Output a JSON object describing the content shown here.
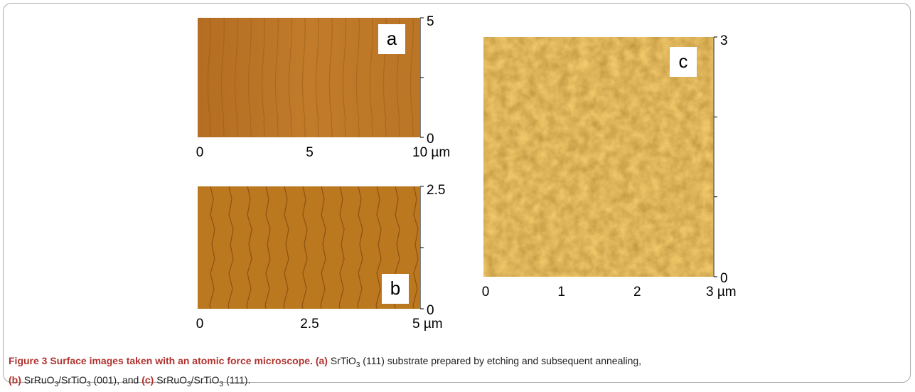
{
  "figure": {
    "panels": [
      {
        "label": "a",
        "x_ticks": [
          "0",
          "5",
          "10 µm"
        ],
        "y_ticks": [
          "0",
          "5"
        ]
      },
      {
        "label": "b",
        "x_ticks": [
          "0",
          "2.5",
          "5 µm"
        ],
        "y_ticks": [
          "0",
          "2.5"
        ]
      },
      {
        "label": "c",
        "x_ticks": [
          "0",
          "1",
          "2",
          "3 µm"
        ],
        "y_ticks": [
          "0",
          "3"
        ]
      }
    ],
    "caption": {
      "parts": [
        "Figure 3 Surface images taken with an atomic force microscope.",
        "(a)",
        " SrTiO",
        "3",
        " (111) substrate prepared by etching and subsequent annealing,",
        "(b)",
        " SrRuO",
        "3",
        "/SrTiO",
        "3",
        " (001), and ",
        "(c)",
        " SrRuO",
        "3",
        "/SrTiO",
        "3",
        " (111)."
      ]
    }
  }
}
